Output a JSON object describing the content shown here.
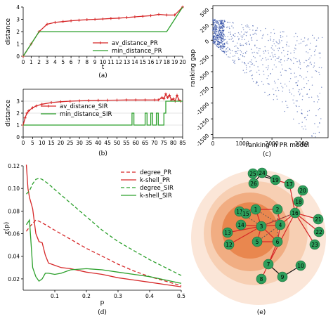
{
  "chart_data": [
    {
      "id": "a",
      "type": "line",
      "caption": "(a)",
      "xlabel": "t",
      "ylabel": "distance",
      "xlim": [
        0,
        20
      ],
      "ylim": [
        0,
        4
      ],
      "xticks": [
        0,
        1,
        2,
        3,
        4,
        5,
        6,
        7,
        8,
        9,
        10,
        11,
        12,
        13,
        14,
        15,
        16,
        17,
        18,
        19,
        20
      ],
      "yticks": [
        0,
        1,
        2,
        3,
        4
      ],
      "legend_position": "lower-right",
      "series": [
        {
          "name": "av_distance_PR",
          "color": "#d62728",
          "marker": "plus",
          "x": [
            0,
            1,
            2,
            3,
            4,
            5,
            6,
            7,
            8,
            9,
            10,
            11,
            12,
            13,
            14,
            15,
            16,
            17,
            18,
            19,
            20
          ],
          "y": [
            0,
            1,
            2,
            2.6,
            2.75,
            2.82,
            2.88,
            2.93,
            2.97,
            3.0,
            3.03,
            3.07,
            3.1,
            3.15,
            3.2,
            3.25,
            3.3,
            3.4,
            3.35,
            3.35,
            4
          ]
        },
        {
          "name": "min_distance_PR",
          "color": "#2ca02c",
          "marker": "none",
          "x": [
            0,
            1,
            2,
            3,
            4,
            5,
            6,
            7,
            8,
            9,
            10,
            11,
            12,
            13,
            14,
            15,
            16,
            17,
            18,
            19,
            20
          ],
          "y": [
            0,
            1,
            2,
            2,
            2,
            2,
            2,
            2,
            2,
            2,
            2,
            2,
            2,
            2,
            2,
            2,
            2,
            2,
            2,
            3,
            4
          ]
        }
      ]
    },
    {
      "id": "b",
      "type": "line",
      "caption": "(b)",
      "xlabel": "t",
      "ylabel": "distance",
      "xlim": [
        0,
        85
      ],
      "ylim": [
        0,
        4
      ],
      "xticks": [
        0,
        5,
        10,
        15,
        20,
        25,
        30,
        35,
        40,
        45,
        50,
        55,
        60,
        65,
        70,
        75,
        80,
        85
      ],
      "yticks": [
        0,
        1,
        2,
        3
      ],
      "legend_position": "center",
      "series": [
        {
          "name": "av_distance_SIR",
          "color": "#d62728",
          "marker": "plus",
          "x": [
            0,
            1,
            2,
            3,
            5,
            7,
            10,
            15,
            20,
            25,
            30,
            35,
            40,
            45,
            50,
            55,
            60,
            65,
            70,
            72,
            74,
            75,
            76,
            77,
            78,
            79,
            80,
            81,
            82,
            83,
            84
          ],
          "y": [
            1,
            1.6,
            2.0,
            2.2,
            2.45,
            2.6,
            2.75,
            2.88,
            2.95,
            3.0,
            3.03,
            3.05,
            3.07,
            3.08,
            3.09,
            3.1,
            3.1,
            3.1,
            3.1,
            3.1,
            3.3,
            3.2,
            3.6,
            3.3,
            3.5,
            3.1,
            3.2,
            3.0,
            3.5,
            3.1,
            3.0
          ]
        },
        {
          "name": "min_distance_SIR",
          "color": "#2ca02c",
          "marker": "none",
          "x": [
            0,
            58,
            58,
            59,
            59,
            65,
            65,
            66,
            66,
            68,
            68,
            69,
            69,
            71,
            71,
            72,
            72,
            75,
            75,
            76,
            76,
            85
          ],
          "y": [
            1,
            1,
            2,
            2,
            1,
            1,
            2,
            2,
            1,
            1,
            2,
            2,
            1,
            1,
            2,
            2,
            1,
            1,
            2,
            2,
            3,
            3
          ]
        }
      ]
    },
    {
      "id": "c",
      "type": "scatter",
      "caption": "(c)",
      "xlabel": "ranking in PR model",
      "ylabel": "ranking gap",
      "xlim": [
        0,
        3900
      ],
      "ylim": [
        -1550,
        550
      ],
      "xticks": [
        0,
        1000,
        2000,
        3000
      ],
      "yticks": [
        500,
        250,
        0,
        -250,
        -500,
        -750,
        -1000,
        -1250,
        -1500
      ],
      "color": "#1f3f9f"
    },
    {
      "id": "d",
      "type": "line",
      "caption": "(d)",
      "xlabel": "p",
      "ylabel": "ε(p)",
      "xlim": [
        0,
        0.5
      ],
      "ylim": [
        0.01,
        0.12
      ],
      "xticks": [
        0.1,
        0.2,
        0.3,
        0.4,
        0.5
      ],
      "xtick_labels": [
        "0.1",
        "0.2",
        "0.3",
        "0.4",
        "0.5"
      ],
      "yticks": [
        0.02,
        0.04,
        0.06,
        0.08,
        0.1,
        0.12
      ],
      "ytick_labels": [
        "0.02",
        "0.04",
        "0.06",
        "0.08",
        "0.10",
        "0.12"
      ],
      "legend_position": "top-right",
      "series": [
        {
          "name": "degree_PR",
          "color": "#d62728",
          "dash": true,
          "x": [
            0.01,
            0.02,
            0.03,
            0.04,
            0.05,
            0.07,
            0.1,
            0.15,
            0.2,
            0.25,
            0.3,
            0.35,
            0.4,
            0.45,
            0.5
          ],
          "y": [
            0.062,
            0.066,
            0.069,
            0.072,
            0.071,
            0.068,
            0.063,
            0.055,
            0.047,
            0.04,
            0.033,
            0.027,
            0.022,
            0.018,
            0.014
          ]
        },
        {
          "name": "k-shell_PR",
          "color": "#d62728",
          "dash": false,
          "x": [
            0.01,
            0.015,
            0.02,
            0.03,
            0.04,
            0.05,
            0.06,
            0.07,
            0.08,
            0.1,
            0.12,
            0.15,
            0.2,
            0.25,
            0.3,
            0.35,
            0.4,
            0.45,
            0.5
          ],
          "y": [
            0.121,
            0.1,
            0.092,
            0.082,
            0.06,
            0.053,
            0.052,
            0.041,
            0.034,
            0.032,
            0.03,
            0.029,
            0.026,
            0.024,
            0.021,
            0.019,
            0.017,
            0.015,
            0.013
          ]
        },
        {
          "name": "degree_SIR",
          "color": "#2ca02c",
          "dash": true,
          "x": [
            0.01,
            0.02,
            0.03,
            0.04,
            0.05,
            0.06,
            0.08,
            0.1,
            0.15,
            0.2,
            0.25,
            0.3,
            0.35,
            0.4,
            0.45,
            0.5
          ],
          "y": [
            0.095,
            0.098,
            0.104,
            0.108,
            0.109,
            0.108,
            0.104,
            0.099,
            0.087,
            0.075,
            0.063,
            0.053,
            0.045,
            0.037,
            0.03,
            0.023
          ]
        },
        {
          "name": "k-shell_SIR",
          "color": "#2ca02c",
          "dash": false,
          "x": [
            0.01,
            0.02,
            0.03,
            0.04,
            0.05,
            0.06,
            0.07,
            0.08,
            0.1,
            0.12,
            0.15,
            0.2,
            0.25,
            0.3,
            0.35,
            0.4,
            0.45,
            0.5
          ],
          "y": [
            0.068,
            0.072,
            0.03,
            0.022,
            0.018,
            0.02,
            0.025,
            0.025,
            0.024,
            0.025,
            0.028,
            0.029,
            0.028,
            0.026,
            0.024,
            0.022,
            0.019,
            0.016
          ]
        }
      ]
    },
    {
      "id": "e",
      "type": "diagram",
      "caption": "(e)",
      "nodes": [
        {
          "id": "1"
        },
        {
          "id": "2"
        },
        {
          "id": "3"
        },
        {
          "id": "4"
        },
        {
          "id": "5"
        },
        {
          "id": "6"
        },
        {
          "id": "7"
        },
        {
          "id": "8"
        },
        {
          "id": "9"
        },
        {
          "id": "10"
        },
        {
          "id": "11"
        },
        {
          "id": "12"
        },
        {
          "id": "13"
        },
        {
          "id": "14"
        },
        {
          "id": "15"
        },
        {
          "id": "16"
        },
        {
          "id": "17"
        },
        {
          "id": "18"
        },
        {
          "id": "19"
        },
        {
          "id": "20"
        },
        {
          "id": "21"
        },
        {
          "id": "22"
        },
        {
          "id": "23"
        },
        {
          "id": "24"
        },
        {
          "id": "25"
        },
        {
          "id": "26"
        }
      ]
    }
  ]
}
